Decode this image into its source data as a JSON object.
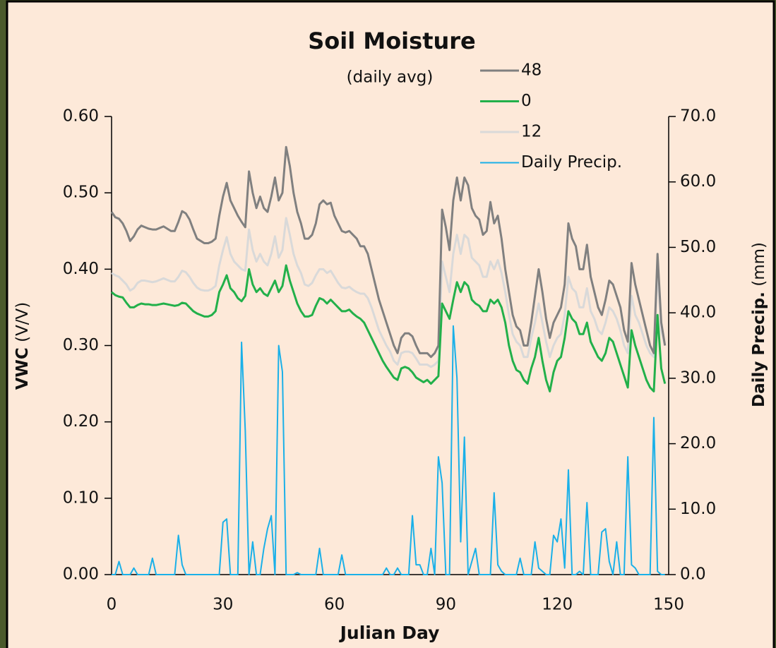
{
  "chart_data": {
    "type": "line",
    "title": "Soil Moisture",
    "subtitle": "(daily avg)",
    "x_label": "Julian Day",
    "y_label": "VWC",
    "y_label_unit": "(V/V)",
    "y2_label": "Daily Precip.",
    "y2_label_unit": "(mm)",
    "x": [
      0,
      1,
      2,
      3,
      4,
      5,
      6,
      7,
      8,
      9,
      10,
      11,
      12,
      13,
      14,
      15,
      16,
      17,
      18,
      19,
      20,
      21,
      22,
      23,
      24,
      25,
      26,
      27,
      28,
      29,
      30,
      31,
      32,
      33,
      34,
      35,
      36,
      37,
      38,
      39,
      40,
      41,
      42,
      43,
      44,
      45,
      46,
      47,
      48,
      49,
      50,
      51,
      52,
      53,
      54,
      55,
      56,
      57,
      58,
      59,
      60,
      61,
      62,
      63,
      64,
      65,
      66,
      67,
      68,
      69,
      70,
      71,
      72,
      73,
      74,
      75,
      76,
      77,
      78,
      79,
      80,
      81,
      82,
      83,
      84,
      85,
      86,
      87,
      88,
      89,
      90,
      91,
      92,
      93,
      94,
      95,
      96,
      97,
      98,
      99,
      100,
      101,
      102,
      103,
      104,
      105,
      106,
      107,
      108,
      109,
      110,
      111,
      112,
      113,
      114,
      115,
      116,
      117,
      118,
      119,
      120,
      121,
      122,
      123,
      124,
      125,
      126,
      127,
      128,
      129,
      130,
      131,
      132,
      133,
      134,
      135,
      136,
      137,
      138,
      139,
      140,
      141,
      142,
      143,
      144,
      145,
      146,
      147,
      148,
      149
    ],
    "series": [
      {
        "name": "48",
        "color": "#808080",
        "axis": "y",
        "values": [
          0.475,
          0.468,
          0.466,
          0.46,
          0.45,
          0.437,
          0.443,
          0.452,
          0.457,
          0.455,
          0.453,
          0.452,
          0.452,
          0.454,
          0.456,
          0.453,
          0.45,
          0.45,
          0.462,
          0.476,
          0.473,
          0.465,
          0.452,
          0.44,
          0.437,
          0.434,
          0.434,
          0.436,
          0.44,
          0.47,
          0.495,
          0.513,
          0.49,
          0.48,
          0.47,
          0.462,
          0.455,
          0.528,
          0.5,
          0.48,
          0.495,
          0.48,
          0.475,
          0.495,
          0.52,
          0.49,
          0.5,
          0.56,
          0.535,
          0.5,
          0.475,
          0.46,
          0.44,
          0.44,
          0.445,
          0.46,
          0.485,
          0.49,
          0.485,
          0.487,
          0.47,
          0.46,
          0.45,
          0.448,
          0.45,
          0.445,
          0.44,
          0.43,
          0.43,
          0.42,
          0.4,
          0.38,
          0.36,
          0.345,
          0.33,
          0.315,
          0.3,
          0.29,
          0.31,
          0.316,
          0.316,
          0.312,
          0.3,
          0.29,
          0.29,
          0.29,
          0.285,
          0.29,
          0.3,
          0.478,
          0.455,
          0.425,
          0.49,
          0.52,
          0.49,
          0.52,
          0.51,
          0.48,
          0.47,
          0.465,
          0.445,
          0.45,
          0.488,
          0.46,
          0.47,
          0.44,
          0.4,
          0.37,
          0.34,
          0.325,
          0.32,
          0.3,
          0.3,
          0.33,
          0.365,
          0.4,
          0.37,
          0.335,
          0.31,
          0.33,
          0.34,
          0.35,
          0.38,
          0.46,
          0.44,
          0.43,
          0.4,
          0.4,
          0.432,
          0.39,
          0.37,
          0.35,
          0.34,
          0.36,
          0.385,
          0.38,
          0.365,
          0.35,
          0.32,
          0.305,
          0.408,
          0.38,
          0.36,
          0.34,
          0.32,
          0.3,
          0.29,
          0.42,
          0.33,
          0.3
        ]
      },
      {
        "name": "0",
        "color": "#22b04a",
        "axis": "y",
        "values": [
          0.37,
          0.366,
          0.364,
          0.363,
          0.356,
          0.35,
          0.35,
          0.353,
          0.355,
          0.354,
          0.354,
          0.353,
          0.353,
          0.354,
          0.355,
          0.354,
          0.353,
          0.352,
          0.353,
          0.356,
          0.355,
          0.35,
          0.345,
          0.342,
          0.34,
          0.338,
          0.338,
          0.34,
          0.345,
          0.37,
          0.38,
          0.392,
          0.375,
          0.37,
          0.362,
          0.358,
          0.365,
          0.4,
          0.38,
          0.37,
          0.375,
          0.368,
          0.365,
          0.375,
          0.385,
          0.37,
          0.378,
          0.405,
          0.385,
          0.37,
          0.355,
          0.345,
          0.338,
          0.338,
          0.34,
          0.352,
          0.362,
          0.36,
          0.355,
          0.36,
          0.355,
          0.35,
          0.345,
          0.345,
          0.347,
          0.342,
          0.338,
          0.335,
          0.33,
          0.32,
          0.31,
          0.3,
          0.29,
          0.28,
          0.272,
          0.265,
          0.258,
          0.255,
          0.27,
          0.272,
          0.27,
          0.265,
          0.258,
          0.255,
          0.252,
          0.255,
          0.25,
          0.255,
          0.26,
          0.355,
          0.345,
          0.335,
          0.36,
          0.383,
          0.37,
          0.383,
          0.378,
          0.36,
          0.355,
          0.352,
          0.345,
          0.345,
          0.36,
          0.355,
          0.36,
          0.35,
          0.33,
          0.3,
          0.28,
          0.268,
          0.265,
          0.255,
          0.25,
          0.27,
          0.285,
          0.31,
          0.28,
          0.255,
          0.24,
          0.265,
          0.28,
          0.285,
          0.31,
          0.345,
          0.335,
          0.33,
          0.315,
          0.315,
          0.33,
          0.305,
          0.295,
          0.285,
          0.28,
          0.29,
          0.31,
          0.305,
          0.29,
          0.275,
          0.26,
          0.245,
          0.32,
          0.3,
          0.285,
          0.27,
          0.255,
          0.245,
          0.24,
          0.34,
          0.27,
          0.25
        ]
      },
      {
        "name": "12",
        "color": "#d9d9d9",
        "axis": "y",
        "values": [
          0.395,
          0.392,
          0.39,
          0.385,
          0.38,
          0.372,
          0.375,
          0.382,
          0.385,
          0.385,
          0.384,
          0.383,
          0.384,
          0.386,
          0.388,
          0.386,
          0.384,
          0.384,
          0.39,
          0.398,
          0.396,
          0.39,
          0.382,
          0.376,
          0.373,
          0.372,
          0.372,
          0.374,
          0.378,
          0.405,
          0.425,
          0.442,
          0.42,
          0.41,
          0.405,
          0.4,
          0.398,
          0.452,
          0.425,
          0.41,
          0.42,
          0.41,
          0.405,
          0.42,
          0.443,
          0.415,
          0.425,
          0.467,
          0.445,
          0.42,
          0.405,
          0.395,
          0.38,
          0.378,
          0.382,
          0.392,
          0.4,
          0.4,
          0.395,
          0.398,
          0.39,
          0.382,
          0.376,
          0.375,
          0.377,
          0.373,
          0.37,
          0.368,
          0.368,
          0.362,
          0.35,
          0.335,
          0.32,
          0.31,
          0.3,
          0.292,
          0.28,
          0.275,
          0.29,
          0.292,
          0.292,
          0.29,
          0.283,
          0.275,
          0.275,
          0.275,
          0.272,
          0.275,
          0.28,
          0.41,
          0.39,
          0.37,
          0.42,
          0.445,
          0.42,
          0.445,
          0.44,
          0.415,
          0.41,
          0.405,
          0.39,
          0.39,
          0.41,
          0.4,
          0.412,
          0.395,
          0.37,
          0.34,
          0.315,
          0.305,
          0.3,
          0.285,
          0.285,
          0.31,
          0.33,
          0.355,
          0.33,
          0.305,
          0.285,
          0.3,
          0.31,
          0.315,
          0.34,
          0.39,
          0.375,
          0.37,
          0.35,
          0.35,
          0.375,
          0.345,
          0.335,
          0.32,
          0.315,
          0.33,
          0.35,
          0.345,
          0.335,
          0.32,
          0.3,
          0.29,
          0.365,
          0.34,
          0.33,
          0.315,
          0.3,
          0.29,
          0.285,
          0.4,
          0.32,
          0.3
        ]
      },
      {
        "name": "Daily Precip.",
        "color": "#1ab0e8",
        "axis": "y2",
        "values": [
          0,
          0,
          2,
          0,
          0,
          0,
          1,
          0,
          0,
          0,
          0,
          2.5,
          0,
          0,
          0,
          0,
          0,
          0,
          6,
          1.5,
          0,
          0,
          0,
          0,
          0,
          0,
          0,
          0,
          0,
          0,
          8,
          8.5,
          0,
          0,
          0,
          35.5,
          22,
          0,
          5,
          0,
          0,
          4,
          7,
          9,
          0,
          35,
          31,
          0,
          0,
          0,
          0.3,
          0,
          0,
          0,
          0,
          0,
          4,
          0,
          0,
          0,
          0,
          0,
          3,
          0,
          0,
          0,
          0,
          0,
          0,
          0,
          0,
          0,
          0,
          0,
          1,
          0,
          0,
          1,
          0,
          0,
          0,
          9,
          1.5,
          1.5,
          0,
          0,
          4,
          0,
          18,
          14,
          0,
          0,
          38,
          30,
          5,
          21,
          0,
          2,
          4,
          0,
          0,
          0,
          0,
          12.5,
          1.5,
          0.5,
          0,
          0,
          0,
          0,
          2.5,
          0,
          0,
          0,
          5,
          1,
          0.5,
          0,
          0,
          6,
          5,
          8.5,
          1,
          16,
          0,
          0,
          0.5,
          0,
          11,
          0,
          0,
          0,
          6.5,
          7,
          2,
          0,
          5,
          0,
          0,
          18,
          1.5,
          1,
          0,
          0,
          0,
          0,
          24,
          0.5,
          0,
          0
        ]
      }
    ],
    "xlim": [
      0,
      150
    ],
    "xticks": [
      0,
      30,
      60,
      90,
      120,
      150
    ],
    "ylim": [
      0,
      0.6
    ],
    "yticks": [
      {
        "value": 0,
        "label": "0.00"
      },
      {
        "value": 0.1,
        "label": "0.10"
      },
      {
        "value": 0.2,
        "label": "0.20"
      },
      {
        "value": 0.3,
        "label": "0.30"
      },
      {
        "value": 0.4,
        "label": "0.40"
      },
      {
        "value": 0.5,
        "label": "0.50"
      },
      {
        "value": 0.6,
        "label": "0.60"
      }
    ],
    "y2lim": [
      0,
      70
    ],
    "y2ticks": [
      {
        "value": 0,
        "label": "0.0"
      },
      {
        "value": 10,
        "label": "10.0"
      },
      {
        "value": 20,
        "label": "20.0"
      },
      {
        "value": 30,
        "label": "30.0"
      },
      {
        "value": 40,
        "label": "40.0"
      },
      {
        "value": 50,
        "label": "50.0"
      },
      {
        "value": 60,
        "label": "60.0"
      },
      {
        "value": 70,
        "label": "70.0"
      }
    ],
    "grid": false
  }
}
